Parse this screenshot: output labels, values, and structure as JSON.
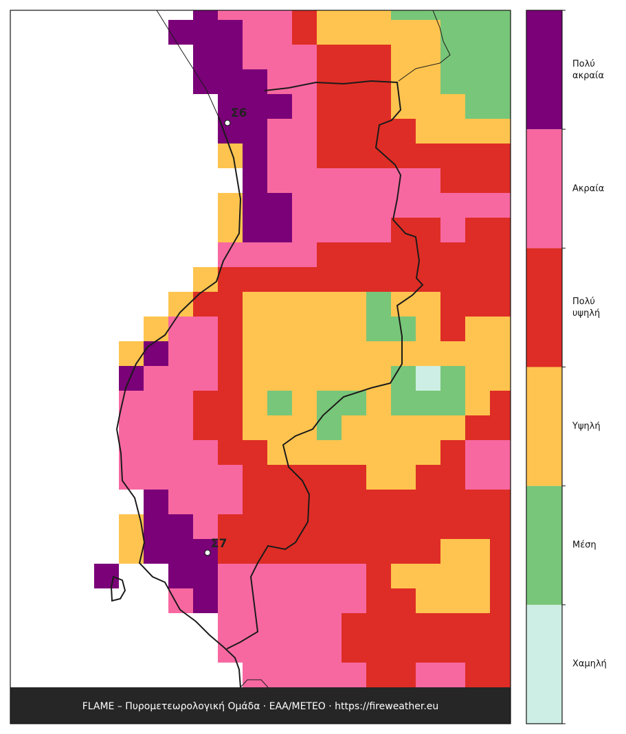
{
  "map": {
    "classes": [
      {
        "label": "Χαμηλή",
        "color": "#cdeee4"
      },
      {
        "label": "Μέση",
        "color": "#78c679"
      },
      {
        "label": "Υψηλή",
        "color": "#fec44f"
      },
      {
        "label": "Πολύ υψηλή",
        "color": "#de2d26"
      },
      {
        "label": "Ακραία",
        "color": "#f768a1"
      },
      {
        "label": "Πολύ ακραία",
        "color": "#7a0177"
      }
    ],
    "grid": [
      [
        null,
        null,
        null,
        null,
        null,
        null,
        null,
        null,
        5,
        4,
        4,
        4,
        3,
        2,
        2,
        2,
        1,
        1,
        1,
        1,
        1
      ],
      [
        null,
        null,
        null,
        null,
        null,
        null,
        null,
        5,
        5,
        5,
        4,
        4,
        3,
        2,
        2,
        2,
        2,
        2,
        1,
        1,
        1
      ],
      [
        null,
        null,
        null,
        null,
        null,
        null,
        null,
        null,
        5,
        5,
        4,
        4,
        4,
        3,
        3,
        3,
        2,
        2,
        1,
        1,
        1
      ],
      [
        null,
        null,
        null,
        null,
        null,
        null,
        null,
        null,
        5,
        5,
        5,
        4,
        4,
        3,
        3,
        3,
        2,
        2,
        1,
        1,
        1
      ],
      [
        null,
        null,
        null,
        null,
        null,
        null,
        null,
        null,
        null,
        5,
        5,
        5,
        4,
        3,
        3,
        3,
        2,
        2,
        2,
        1,
        1
      ],
      [
        null,
        null,
        null,
        null,
        null,
        null,
        null,
        null,
        null,
        5,
        5,
        4,
        4,
        3,
        3,
        3,
        3,
        2,
        2,
        2,
        2
      ],
      [
        null,
        null,
        null,
        null,
        null,
        null,
        null,
        null,
        null,
        2,
        5,
        4,
        4,
        3,
        3,
        3,
        3,
        3,
        3,
        3,
        3
      ],
      [
        null,
        null,
        null,
        null,
        null,
        null,
        null,
        null,
        null,
        null,
        5,
        4,
        4,
        4,
        4,
        4,
        4,
        4,
        3,
        3,
        3
      ],
      [
        null,
        null,
        null,
        null,
        null,
        null,
        null,
        null,
        null,
        2,
        5,
        5,
        4,
        4,
        4,
        4,
        4,
        4,
        4,
        4,
        4
      ],
      [
        null,
        null,
        null,
        null,
        null,
        null,
        null,
        null,
        null,
        2,
        5,
        5,
        4,
        4,
        4,
        4,
        3,
        3,
        4,
        3,
        3
      ],
      [
        null,
        null,
        null,
        null,
        null,
        null,
        null,
        null,
        null,
        4,
        4,
        4,
        4,
        3,
        3,
        3,
        3,
        3,
        3,
        3,
        3
      ],
      [
        null,
        null,
        null,
        null,
        null,
        null,
        null,
        null,
        2,
        3,
        3,
        3,
        3,
        3,
        3,
        3,
        3,
        3,
        3,
        3,
        3
      ],
      [
        null,
        null,
        null,
        null,
        null,
        null,
        null,
        2,
        3,
        3,
        2,
        2,
        2,
        2,
        2,
        1,
        2,
        2,
        3,
        3,
        3
      ],
      [
        null,
        null,
        null,
        null,
        null,
        null,
        2,
        4,
        4,
        3,
        2,
        2,
        2,
        2,
        2,
        1,
        1,
        2,
        3,
        2,
        2
      ],
      [
        null,
        null,
        null,
        null,
        null,
        2,
        5,
        4,
        4,
        3,
        2,
        2,
        2,
        2,
        2,
        2,
        2,
        2,
        2,
        2,
        2
      ],
      [
        null,
        null,
        null,
        null,
        null,
        5,
        4,
        4,
        4,
        3,
        2,
        2,
        2,
        2,
        2,
        2,
        1,
        0,
        1,
        2,
        2
      ],
      [
        null,
        null,
        null,
        null,
        null,
        4,
        4,
        4,
        3,
        3,
        2,
        1,
        2,
        1,
        1,
        2,
        1,
        1,
        1,
        2,
        3
      ],
      [
        null,
        null,
        null,
        null,
        null,
        4,
        4,
        4,
        3,
        3,
        2,
        2,
        2,
        1,
        2,
        2,
        2,
        2,
        2,
        3,
        3
      ],
      [
        null,
        null,
        null,
        null,
        null,
        4,
        4,
        4,
        4,
        3,
        3,
        2,
        2,
        2,
        2,
        2,
        2,
        2,
        3,
        4,
        4
      ],
      [
        null,
        null,
        null,
        null,
        null,
        4,
        4,
        4,
        4,
        4,
        3,
        3,
        3,
        3,
        3,
        2,
        2,
        3,
        3,
        4,
        4
      ],
      [
        null,
        null,
        null,
        null,
        null,
        null,
        5,
        4,
        4,
        4,
        3,
        3,
        3,
        3,
        3,
        3,
        3,
        3,
        3,
        3,
        3
      ],
      [
        null,
        null,
        null,
        null,
        null,
        2,
        5,
        5,
        4,
        3,
        3,
        3,
        3,
        3,
        3,
        3,
        3,
        3,
        3,
        3,
        3
      ],
      [
        null,
        null,
        null,
        null,
        null,
        2,
        5,
        5,
        5,
        3,
        3,
        3,
        3,
        3,
        3,
        3,
        3,
        3,
        2,
        2,
        3
      ],
      [
        null,
        null,
        null,
        null,
        5,
        null,
        null,
        5,
        5,
        4,
        4,
        4,
        4,
        4,
        4,
        3,
        2,
        2,
        2,
        2,
        3
      ],
      [
        null,
        null,
        null,
        null,
        null,
        null,
        null,
        4,
        5,
        4,
        4,
        4,
        4,
        4,
        4,
        3,
        3,
        2,
        2,
        2,
        3
      ],
      [
        null,
        null,
        null,
        null,
        null,
        null,
        null,
        null,
        null,
        4,
        4,
        4,
        4,
        4,
        3,
        3,
        3,
        3,
        3,
        3,
        3
      ],
      [
        null,
        null,
        null,
        null,
        null,
        null,
        null,
        null,
        null,
        4,
        4,
        4,
        4,
        4,
        3,
        3,
        3,
        3,
        3,
        3,
        3
      ],
      [
        null,
        null,
        null,
        null,
        null,
        null,
        null,
        null,
        null,
        null,
        4,
        4,
        4,
        4,
        4,
        3,
        3,
        4,
        4,
        3,
        3
      ]
    ],
    "stations": [
      {
        "label": "Σ6"
      },
      {
        "label": "Σ7"
      }
    ],
    "footer": "FLAME – Πυρομετεωρολογική Ομάδα · ΕΑΑ/ΜΕΤΕΟ · https://fireweather.eu"
  }
}
